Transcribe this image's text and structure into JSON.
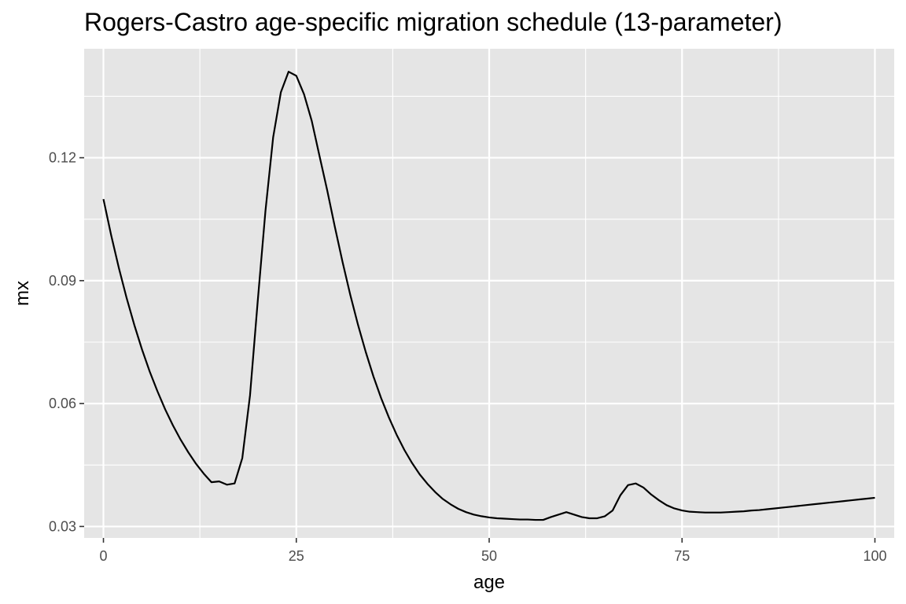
{
  "chart_data": {
    "type": "line",
    "title": "Rogers-Castro age-specific migration schedule (13-parameter)",
    "xlabel": "age",
    "ylabel": "mx",
    "xlim": [
      -2.5,
      102.5
    ],
    "ylim": [
      0.0272,
      0.1466
    ],
    "x_ticks": [
      0,
      25,
      50,
      75,
      100
    ],
    "x_tick_labels": [
      "0",
      "25",
      "50",
      "75",
      "100"
    ],
    "x_minor_ticks": [
      12.5,
      37.5,
      62.5,
      87.5
    ],
    "y_ticks": [
      0.03,
      0.06,
      0.09,
      0.12
    ],
    "y_tick_labels": [
      "0.03",
      "0.06",
      "0.09",
      "0.12"
    ],
    "y_minor_ticks": [
      0.045,
      0.075,
      0.105,
      0.135
    ],
    "grid": true,
    "colors": {
      "panel": "#e5e5e5",
      "grid": "#ffffff",
      "line": "#000000",
      "tick": "#333333"
    },
    "series": [
      {
        "name": "mx",
        "x": [
          0,
          1,
          2,
          3,
          4,
          5,
          6,
          7,
          8,
          9,
          10,
          11,
          12,
          13,
          14,
          15,
          16,
          17,
          18,
          19,
          20,
          21,
          22,
          23,
          24,
          25,
          26,
          27,
          28,
          29,
          30,
          31,
          32,
          33,
          34,
          35,
          36,
          37,
          38,
          39,
          40,
          41,
          42,
          43,
          44,
          45,
          46,
          47,
          48,
          49,
          50,
          51,
          52,
          53,
          54,
          55,
          56,
          57,
          58,
          59,
          60,
          61,
          62,
          63,
          64,
          65,
          66,
          67,
          68,
          69,
          70,
          71,
          72,
          73,
          74,
          75,
          76,
          77,
          78,
          79,
          80,
          81,
          82,
          83,
          84,
          85,
          86,
          87,
          88,
          89,
          90,
          91,
          92,
          93,
          94,
          95,
          96,
          97,
          98,
          99,
          100
        ],
        "y": [
          0.1099,
          0.1011,
          0.0931,
          0.0858,
          0.0792,
          0.0732,
          0.0678,
          0.063,
          0.0586,
          0.0547,
          0.0512,
          0.0481,
          0.0453,
          0.0429,
          0.0408,
          0.041,
          0.0402,
          0.0405,
          0.0467,
          0.062,
          0.085,
          0.107,
          0.125,
          0.136,
          0.141,
          0.14,
          0.1355,
          0.129,
          0.1205,
          0.1121,
          0.1031,
          0.0945,
          0.0865,
          0.0792,
          0.0726,
          0.0666,
          0.0613,
          0.0566,
          0.0524,
          0.0487,
          0.0455,
          0.0427,
          0.0404,
          0.0384,
          0.0367,
          0.0354,
          0.0343,
          0.0335,
          0.0329,
          0.0325,
          0.0322,
          0.032,
          0.0319,
          0.0318,
          0.0317,
          0.0317,
          0.0316,
          0.0316,
          0.0323,
          0.0329,
          0.0335,
          0.0329,
          0.0323,
          0.032,
          0.032,
          0.0325,
          0.0339,
          0.0376,
          0.0401,
          0.0405,
          0.0395,
          0.0378,
          0.0364,
          0.0352,
          0.0344,
          0.0339,
          0.0336,
          0.0335,
          0.0334,
          0.0334,
          0.0334,
          0.0335,
          0.0336,
          0.0337,
          0.0339,
          0.034,
          0.0342,
          0.0344,
          0.0346,
          0.0348,
          0.035,
          0.0352,
          0.0354,
          0.0356,
          0.0358,
          0.036,
          0.0362,
          0.0364,
          0.0366,
          0.0368,
          0.037
        ]
      }
    ]
  }
}
